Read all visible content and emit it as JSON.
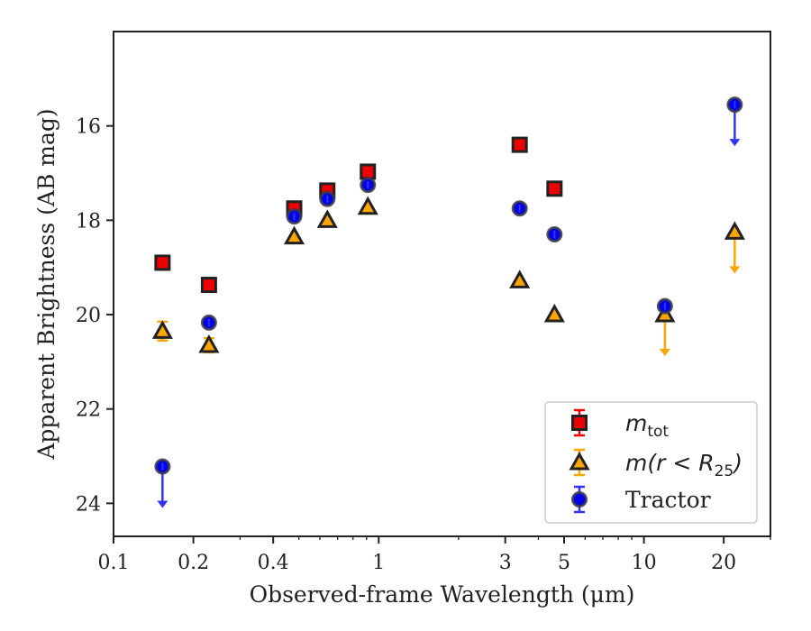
{
  "chart_data": {
    "type": "scatter",
    "xlabel": "Observed-frame Wavelength (μm)",
    "ylabel": "Apparent Brightness (AB mag)",
    "xscale": "log",
    "xlim": [
      0.1,
      30
    ],
    "ylim": [
      24.7,
      14.0
    ],
    "y_inverted": true,
    "grid": false,
    "legend_position": "lower-right",
    "x_ticks": [
      0.1,
      0.2,
      0.4,
      1,
      3,
      5,
      10,
      20
    ],
    "x_tick_labels": [
      "0.1",
      "0.2",
      "0.4",
      "1",
      "3",
      "5",
      "10",
      "20"
    ],
    "y_ticks": [
      16,
      18,
      20,
      22,
      24
    ],
    "y_tick_labels": [
      "16",
      "18",
      "20",
      "22",
      "24"
    ],
    "series": [
      {
        "name": "m_tot",
        "legend_main": "m",
        "legend_sub": "tot",
        "marker": "square",
        "color": "#ee0000",
        "error_color": "#ee0000",
        "points": [
          {
            "x": 0.153,
            "y": 18.9
          },
          {
            "x": 0.229,
            "y": 19.37
          },
          {
            "x": 0.48,
            "y": 17.75
          },
          {
            "x": 0.64,
            "y": 17.37
          },
          {
            "x": 0.91,
            "y": 16.97
          },
          {
            "x": 3.4,
            "y": 16.4
          },
          {
            "x": 4.6,
            "y": 17.33
          }
        ]
      },
      {
        "name": "m(r < R25)",
        "legend_main": "m(r < R",
        "legend_sub": "25",
        "legend_end": ")",
        "marker": "triangle",
        "color": "#ffa500",
        "error_color": "#ffa500",
        "points": [
          {
            "x": 0.153,
            "y": 20.35,
            "yerr": 0.2
          },
          {
            "x": 0.229,
            "y": 20.65,
            "yerr": 0.15
          },
          {
            "x": 0.48,
            "y": 18.35
          },
          {
            "x": 0.64,
            "y": 18.0
          },
          {
            "x": 0.91,
            "y": 17.72
          },
          {
            "x": 3.4,
            "y": 19.28
          },
          {
            "x": 4.6,
            "y": 20.0
          },
          {
            "x": 12.0,
            "y": 20.0,
            "upper_limit": true
          },
          {
            "x": 22.0,
            "y": 18.25,
            "upper_limit": true
          }
        ]
      },
      {
        "name": "Tractor",
        "legend_main": "Tractor",
        "marker": "circle",
        "color": "#0000ee",
        "error_color": "#3333ee",
        "points": [
          {
            "x": 0.153,
            "y": 23.22,
            "upper_limit": true
          },
          {
            "x": 0.229,
            "y": 20.17
          },
          {
            "x": 0.48,
            "y": 17.92
          },
          {
            "x": 0.64,
            "y": 17.55
          },
          {
            "x": 0.91,
            "y": 17.25
          },
          {
            "x": 3.4,
            "y": 17.75
          },
          {
            "x": 4.6,
            "y": 18.3
          },
          {
            "x": 12.0,
            "y": 19.82
          },
          {
            "x": 22.0,
            "y": 15.55,
            "upper_limit": true
          }
        ]
      }
    ]
  }
}
